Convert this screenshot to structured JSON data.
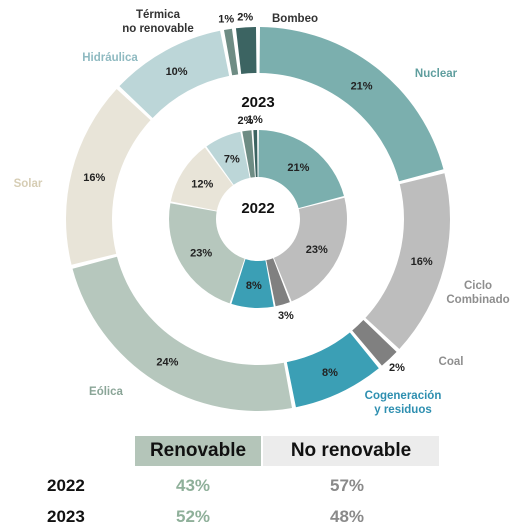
{
  "colors": {
    "nuclear": "#7bafae",
    "ciclo": "#bdbdbd",
    "coal": "#808080",
    "cogen": "#3b9fb5",
    "eolica": "#b6c7bd",
    "solar": "#e8e4d8",
    "hidraulica": "#bcd6d8",
    "termica": "#6e8c84",
    "bombeo": "#3c6462",
    "renovable_header_bg": "#b4c5b9",
    "no_renovable_header_bg": "#ececec"
  },
  "chart_data": {
    "type": "donut",
    "rings": [
      {
        "year": "2023",
        "position": "outer",
        "slices": [
          {
            "name": "Nuclear",
            "value": 21,
            "label": "21%",
            "color": "nuclear"
          },
          {
            "name": "Ciclo Combinado",
            "value": 16,
            "label": "16%",
            "color": "ciclo"
          },
          {
            "name": "Coal",
            "value": 2,
            "label": "2%",
            "color": "coal"
          },
          {
            "name": "Cogeneración y residuos",
            "value": 8,
            "label": "8%",
            "color": "cogen"
          },
          {
            "name": "Eólica",
            "value": 24,
            "label": "24%",
            "color": "eolica"
          },
          {
            "name": "Solar",
            "value": 16,
            "label": "16%",
            "color": "solar"
          },
          {
            "name": "Hidráulica",
            "value": 10,
            "label": "10%",
            "color": "hidraulica"
          },
          {
            "name": "Térmica no renovable",
            "value": 1,
            "label": "1%",
            "color": "termica"
          },
          {
            "name": "Bombeo",
            "value": 2,
            "label": "2%",
            "color": "bombeo"
          }
        ]
      },
      {
        "year": "2022",
        "position": "inner",
        "slices": [
          {
            "name": "Nuclear",
            "value": 21,
            "label": "21%",
            "color": "nuclear"
          },
          {
            "name": "Ciclo Combinado",
            "value": 23,
            "label": "23%",
            "color": "ciclo"
          },
          {
            "name": "Coal",
            "value": 3,
            "label": "3%",
            "color": "coal"
          },
          {
            "name": "Cogeneración y residuos",
            "value": 8,
            "label": "8%",
            "color": "cogen"
          },
          {
            "name": "Eólica",
            "value": 23,
            "label": "23%",
            "color": "eolica"
          },
          {
            "name": "Solar",
            "value": 12,
            "label": "12%",
            "color": "solar"
          },
          {
            "name": "Hidráulica",
            "value": 7,
            "label": "7%",
            "color": "hidraulica"
          },
          {
            "name": "Térmica no renovable",
            "value": 2,
            "label": "2%",
            "color": "termica"
          },
          {
            "name": "Bombeo",
            "value": 1,
            "label": "1%",
            "color": "bombeo"
          }
        ]
      }
    ],
    "category_labels": [
      {
        "name": "Nuclear",
        "lines": [
          "Nuclear"
        ],
        "color": "#5f9e9e"
      },
      {
        "name": "Ciclo Combinado",
        "lines": [
          "Ciclo",
          "Combinado"
        ],
        "color": "#8e8e8e"
      },
      {
        "name": "Coal",
        "lines": [
          "Coal"
        ],
        "color": "#8e8e8e"
      },
      {
        "name": "Cogeneración y residuos",
        "lines": [
          "Cogeneración",
          "y residuos"
        ],
        "color": "#2e8fb0"
      },
      {
        "name": "Eólica",
        "lines": [
          "Eólica"
        ],
        "color": "#8aa597"
      },
      {
        "name": "Solar",
        "lines": [
          "Solar"
        ],
        "color": "#d6cdb4"
      },
      {
        "name": "Hidráulica",
        "lines": [
          "Hidráulica"
        ],
        "color": "#8fbac1"
      },
      {
        "name": "Térmica no renovable",
        "lines": [
          "Térmica",
          "no renovable"
        ],
        "color": "#333333"
      },
      {
        "name": "Bombeo",
        "lines": [
          "Bombeo"
        ],
        "color": "#333333"
      }
    ],
    "ring_labels": {
      "outer": "2023",
      "inner": "2022"
    }
  },
  "summary": {
    "headers": {
      "renovable": "Renovable",
      "no_renovable": "No renovable"
    },
    "rows": [
      {
        "year": "2022",
        "renovable": "43%",
        "no_renovable": "57%"
      },
      {
        "year": "2023",
        "renovable": "52%",
        "no_renovable": "48%"
      }
    ]
  }
}
